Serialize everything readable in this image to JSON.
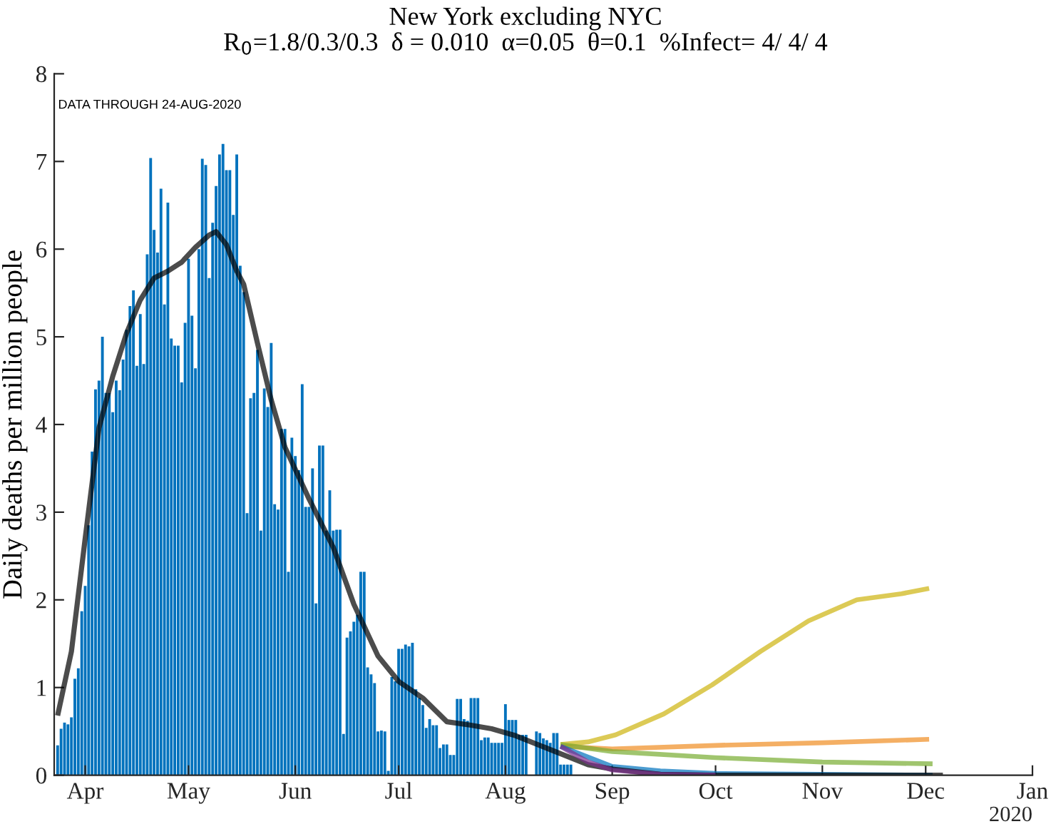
{
  "chart_data": {
    "type": "bar",
    "title": "New York excluding NYC",
    "subtitle": "R$_{0}$=1.8/0.3/0.3  δ = 0.010  α=0.05  θ=0.1  %Infect= 4/ 4/ 4",
    "ylabel": "Daily deaths per million people",
    "annotations": [
      "DATA THROUGH 24-AUG-2020",
      "2020"
    ],
    "xlim": [
      "2020-03-23",
      "2021-01-01"
    ],
    "xticks": [
      {
        "value": "2020-04-01",
        "label": "Apr"
      },
      {
        "value": "2020-05-01",
        "label": "May"
      },
      {
        "value": "2020-06-01",
        "label": "Jun"
      },
      {
        "value": "2020-07-01",
        "label": "Jul"
      },
      {
        "value": "2020-08-01",
        "label": "Aug"
      },
      {
        "value": "2020-09-01",
        "label": "Sep"
      },
      {
        "value": "2020-10-01",
        "label": "Oct"
      },
      {
        "value": "2020-11-01",
        "label": "Nov"
      },
      {
        "value": "2020-12-01",
        "label": "Dec"
      },
      {
        "value": "2021-01-01",
        "label": "Jan"
      }
    ],
    "ylim": [
      0,
      8
    ],
    "yticks": [
      0,
      1,
      2,
      3,
      4,
      5,
      6,
      7,
      8
    ],
    "grid": false,
    "legend": false,
    "series": [
      {
        "color": "#0072bd",
        "x": [
          "2020-03-24",
          "2020-03-25",
          "2020-03-26",
          "2020-03-27",
          "2020-03-28",
          "2020-03-29",
          "2020-03-30",
          "2020-03-31",
          "2020-04-01",
          "2020-04-02",
          "2020-04-03",
          "2020-04-04",
          "2020-04-05",
          "2020-04-06",
          "2020-04-07",
          "2020-04-08",
          "2020-04-09",
          "2020-04-10",
          "2020-04-11",
          "2020-04-12",
          "2020-04-13",
          "2020-04-14",
          "2020-04-15",
          "2020-04-16",
          "2020-04-17",
          "2020-04-18",
          "2020-04-19",
          "2020-04-20",
          "2020-04-21",
          "2020-04-22",
          "2020-04-23",
          "2020-04-24",
          "2020-04-25",
          "2020-04-26",
          "2020-04-27",
          "2020-04-28",
          "2020-04-29",
          "2020-04-30",
          "2020-05-01",
          "2020-05-02",
          "2020-05-03",
          "2020-05-04",
          "2020-05-05",
          "2020-05-06",
          "2020-05-07",
          "2020-05-08",
          "2020-05-09",
          "2020-05-10",
          "2020-05-11",
          "2020-05-12",
          "2020-05-13",
          "2020-05-14",
          "2020-05-15",
          "2020-05-16",
          "2020-05-17",
          "2020-05-18",
          "2020-05-19",
          "2020-05-20",
          "2020-05-21",
          "2020-05-22",
          "2020-05-23",
          "2020-05-24",
          "2020-05-25",
          "2020-05-26",
          "2020-05-27",
          "2020-05-28",
          "2020-05-29",
          "2020-05-30",
          "2020-05-31",
          "2020-06-01",
          "2020-06-02",
          "2020-06-03",
          "2020-06-04",
          "2020-06-05",
          "2020-06-06",
          "2020-06-07",
          "2020-06-08",
          "2020-06-09",
          "2020-06-10",
          "2020-06-11",
          "2020-06-12",
          "2020-06-13",
          "2020-06-14",
          "2020-06-15",
          "2020-06-16",
          "2020-06-17",
          "2020-06-18",
          "2020-06-19",
          "2020-06-20",
          "2020-06-21",
          "2020-06-22",
          "2020-06-23",
          "2020-06-24",
          "2020-06-25",
          "2020-06-26",
          "2020-06-27",
          "2020-06-28",
          "2020-06-29",
          "2020-06-30",
          "2020-07-01",
          "2020-07-02",
          "2020-07-03",
          "2020-07-04",
          "2020-07-05",
          "2020-07-06",
          "2020-07-07",
          "2020-07-08",
          "2020-07-09",
          "2020-07-10",
          "2020-07-11",
          "2020-07-12",
          "2020-07-13",
          "2020-07-14",
          "2020-07-15",
          "2020-07-16",
          "2020-07-17",
          "2020-07-18",
          "2020-07-19",
          "2020-07-20",
          "2020-07-21",
          "2020-07-22",
          "2020-07-23",
          "2020-07-24",
          "2020-07-25",
          "2020-07-26",
          "2020-07-27",
          "2020-07-28",
          "2020-07-29",
          "2020-07-30",
          "2020-07-31",
          "2020-08-01",
          "2020-08-02",
          "2020-08-03",
          "2020-08-04",
          "2020-08-05",
          "2020-08-06",
          "2020-08-07",
          "2020-08-08",
          "2020-08-09",
          "2020-08-10",
          "2020-08-11",
          "2020-08-12",
          "2020-08-13",
          "2020-08-14",
          "2020-08-15",
          "2020-08-16",
          "2020-08-17",
          "2020-08-18",
          "2020-08-19",
          "2020-08-20"
        ],
        "values": [
          0.34,
          0.53,
          0.6,
          0.58,
          0.66,
          1.1,
          1.22,
          1.87,
          2.16,
          2.85,
          3.69,
          4.4,
          4.5,
          5.0,
          4.36,
          4.36,
          4.14,
          4.5,
          4.39,
          4.74,
          5.08,
          5.35,
          5.53,
          4.67,
          5.26,
          4.69,
          5.94,
          7.04,
          6.22,
          5.96,
          6.69,
          5.37,
          6.53,
          4.98,
          4.9,
          4.9,
          4.48,
          5.16,
          5.89,
          5.24,
          4.64,
          6.0,
          7.03,
          6.96,
          5.67,
          6.3,
          6.72,
          7.08,
          7.2,
          6.9,
          6.9,
          6.39,
          7.08,
          5.81,
          5.51,
          2.99,
          4.3,
          4.36,
          4.85,
          2.79,
          4.41,
          4.2,
          4.93,
          3.09,
          3.03,
          3.95,
          3.95,
          2.32,
          3.85,
          3.64,
          3.48,
          4.46,
          3.06,
          3.06,
          3.5,
          1.96,
          3.76,
          3.76,
          2.79,
          3.25,
          2.79,
          2.8,
          2.8,
          0.47,
          1.57,
          1.64,
          1.75,
          1.83,
          2.32,
          2.32,
          1.23,
          1.15,
          1.05,
          0.5,
          0.51,
          0.5,
          0.05,
          1.12,
          1.07,
          1.44,
          1.44,
          1.49,
          1.47,
          1.51,
          0.98,
          0.88,
          0.8,
          0.54,
          0.64,
          0.57,
          0.57,
          0.31,
          0.35,
          0.35,
          0.23,
          0.23,
          0.87,
          0.87,
          0.64,
          0.62,
          0.88,
          0.88,
          0.88,
          0.4,
          0.43,
          0.43,
          0.37,
          0.37,
          0.37,
          0.37,
          0.81,
          0.63,
          0.63,
          0.63,
          0.46,
          0.46,
          0.46,
          0,
          0,
          0.5,
          0.48,
          0.42,
          0.4,
          0.37,
          0.48,
          0.48,
          0.12,
          0.12,
          0.12,
          0.12
        ]
      },
      {
        "type": "line",
        "color": "#cdb40e",
        "x": [
          "2020-08-17",
          "2020-08-25",
          "2020-09-02",
          "2020-09-16",
          "2020-09-30",
          "2020-10-14",
          "2020-10-28",
          "2020-11-11",
          "2020-11-24",
          "2020-12-02"
        ],
        "values": [
          0.35,
          0.38,
          0.46,
          0.7,
          1.03,
          1.41,
          1.76,
          2.0,
          2.07,
          2.13
        ]
      },
      {
        "type": "line",
        "color": "#ef8d22",
        "x": [
          "2020-08-17",
          "2020-09-01",
          "2020-10-01",
          "2020-11-01",
          "2020-12-02"
        ],
        "values": [
          0.33,
          0.3,
          0.34,
          0.37,
          0.41
        ]
      },
      {
        "type": "line",
        "color": "#77ac30",
        "x": [
          "2020-08-17",
          "2020-09-01",
          "2020-10-01",
          "2020-11-01",
          "2020-12-03"
        ],
        "values": [
          0.35,
          0.27,
          0.2,
          0.15,
          0.13
        ]
      },
      {
        "type": "line",
        "color": "#0072bd",
        "x": [
          "2020-08-17",
          "2020-09-01",
          "2020-09-15",
          "2020-10-01",
          "2020-11-01",
          "2020-12-03"
        ],
        "values": [
          0.33,
          0.1,
          0.05,
          0.02,
          0.01,
          0
        ]
      },
      {
        "type": "line",
        "color": "#000000",
        "x": [
          "2020-03-24",
          "2020-03-28",
          "2020-04-01",
          "2020-04-05",
          "2020-04-09",
          "2020-04-13",
          "2020-04-17",
          "2020-04-21",
          "2020-04-25",
          "2020-04-29",
          "2020-05-03",
          "2020-05-07",
          "2020-05-09",
          "2020-05-12",
          "2020-05-15",
          "2020-05-17",
          "2020-05-21",
          "2020-05-25",
          "2020-05-29",
          "2020-06-05",
          "2020-06-12",
          "2020-06-18",
          "2020-06-25",
          "2020-07-01",
          "2020-07-08",
          "2020-07-15",
          "2020-07-22",
          "2020-07-28",
          "2020-08-04",
          "2020-08-11",
          "2020-08-18",
          "2020-08-25",
          "2020-09-01",
          "2020-09-15",
          "2020-10-01",
          "2020-12-06"
        ],
        "values": [
          0.68,
          1.41,
          2.7,
          3.96,
          4.55,
          5.04,
          5.42,
          5.67,
          5.75,
          5.85,
          6.02,
          6.16,
          6.2,
          6.05,
          5.75,
          5.6,
          4.93,
          4.28,
          3.74,
          3.15,
          2.6,
          1.95,
          1.36,
          1.07,
          0.88,
          0.61,
          0.57,
          0.53,
          0.45,
          0.34,
          0.23,
          0.12,
          0.07,
          0.01,
          0,
          0
        ]
      },
      {
        "type": "line",
        "color": "#7e2f8e",
        "x": [
          "2020-08-17",
          "2020-08-25",
          "2020-09-01",
          "2020-09-15",
          "2020-10-01"
        ],
        "values": [
          0.33,
          0.15,
          0.06,
          0.01,
          0
        ]
      }
    ]
  }
}
